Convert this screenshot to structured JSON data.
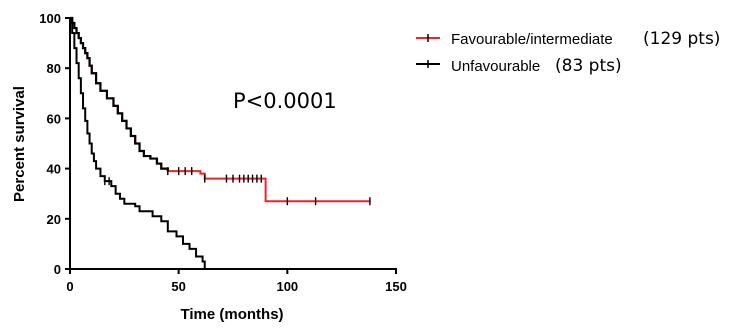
{
  "chart_data": {
    "type": "line",
    "subtype": "kaplan-meier",
    "xlabel": "Time (months)",
    "ylabel": "Percent survival",
    "xlim": [
      0,
      150
    ],
    "ylim": [
      0,
      100
    ],
    "xticks": [
      0,
      50,
      100,
      150
    ],
    "yticks": [
      0,
      20,
      40,
      60,
      80,
      100
    ],
    "annotation": "P<0.0001",
    "grid": false,
    "legend_position": "top-right",
    "series": [
      {
        "name": "Favourable/intermediate",
        "count_label": "(129 pts)",
        "color": "#e8262c",
        "step_points": [
          [
            0,
            100
          ],
          [
            1,
            98
          ],
          [
            2,
            96
          ],
          [
            3,
            94
          ],
          [
            4,
            92
          ],
          [
            5,
            90
          ],
          [
            6,
            88
          ],
          [
            7,
            86
          ],
          [
            8,
            84
          ],
          [
            9,
            81
          ],
          [
            10,
            78
          ],
          [
            12,
            74
          ],
          [
            14,
            71
          ],
          [
            17,
            68
          ],
          [
            20,
            65
          ],
          [
            22,
            62
          ],
          [
            24,
            59
          ],
          [
            26,
            56
          ],
          [
            28,
            53
          ],
          [
            30,
            50
          ],
          [
            32,
            47
          ],
          [
            34,
            45
          ],
          [
            37,
            44
          ],
          [
            40,
            42
          ],
          [
            42,
            40
          ],
          [
            45,
            39
          ],
          [
            60,
            38
          ],
          [
            62,
            36
          ],
          [
            90,
            36
          ],
          [
            90,
            27
          ],
          [
            138,
            27
          ]
        ],
        "censor_times": [
          45,
          50,
          53,
          56,
          62,
          72,
          75,
          78,
          80,
          82,
          84,
          86,
          88,
          100,
          113,
          138
        ]
      },
      {
        "name": "Unfavourable",
        "count_label": "(83 pts)",
        "color": "#000000",
        "step_points": [
          [
            0,
            100
          ],
          [
            1,
            94
          ],
          [
            2,
            88
          ],
          [
            3,
            82
          ],
          [
            4,
            76
          ],
          [
            5,
            70
          ],
          [
            6,
            64
          ],
          [
            7,
            59
          ],
          [
            8,
            54
          ],
          [
            9,
            50
          ],
          [
            10,
            46
          ],
          [
            11,
            43
          ],
          [
            12,
            40
          ],
          [
            14,
            37
          ],
          [
            16,
            35
          ],
          [
            19,
            33
          ],
          [
            21,
            30
          ],
          [
            23,
            28
          ],
          [
            25,
            26
          ],
          [
            30,
            25
          ],
          [
            32,
            23
          ],
          [
            36,
            23
          ],
          [
            38,
            21
          ],
          [
            42,
            19
          ],
          [
            45,
            15
          ],
          [
            49,
            13
          ],
          [
            52,
            10
          ],
          [
            55,
            8
          ],
          [
            58,
            5
          ],
          [
            61,
            3
          ],
          [
            62,
            0
          ]
        ],
        "censor_times": [
          16,
          18
        ]
      }
    ]
  }
}
